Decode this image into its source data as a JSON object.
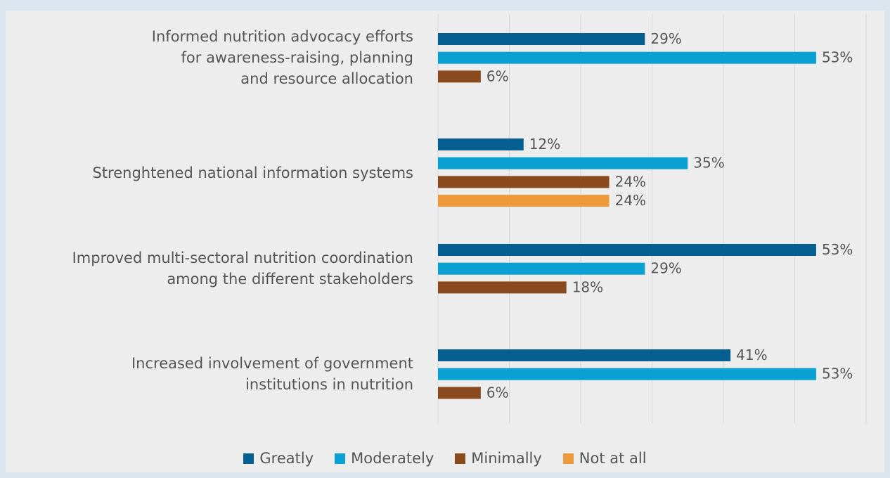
{
  "chart_data": {
    "type": "bar",
    "orientation": "horizontal",
    "categories": [
      "Informed nutrition advocacy efforts\nfor awareness-raising, planning\nand resource allocation",
      "Strenghtened national information systems",
      "Improved multi-sectoral nutrition coordination\namong the different stakeholders",
      "Increased involvement of government\ninstitutions in nutrition"
    ],
    "series": [
      {
        "name": "Greatly",
        "color": "#065f91",
        "values": [
          29,
          12,
          53,
          41
        ],
        "value_labels": [
          "29%",
          "12%",
          "53%",
          "41%"
        ]
      },
      {
        "name": "Moderately",
        "color": "#0aa0d2",
        "values": [
          53,
          35,
          29,
          53
        ],
        "value_labels": [
          "53%",
          "35%",
          "29%",
          "53%"
        ]
      },
      {
        "name": "Minimally",
        "color": "#8b4a1e",
        "values": [
          6,
          24,
          18,
          6
        ],
        "value_labels": [
          "6%",
          "24%",
          "18%",
          "6%"
        ]
      },
      {
        "name": "Not at all",
        "color": "#ef9a3a",
        "values": [
          null,
          24,
          null,
          null
        ],
        "value_labels": [
          null,
          "24%",
          null,
          null
        ]
      }
    ],
    "xlim": [
      0,
      60
    ],
    "xticks": [
      0,
      10,
      20,
      30,
      40,
      50,
      60
    ],
    "grid": true,
    "legend": "bottom"
  }
}
